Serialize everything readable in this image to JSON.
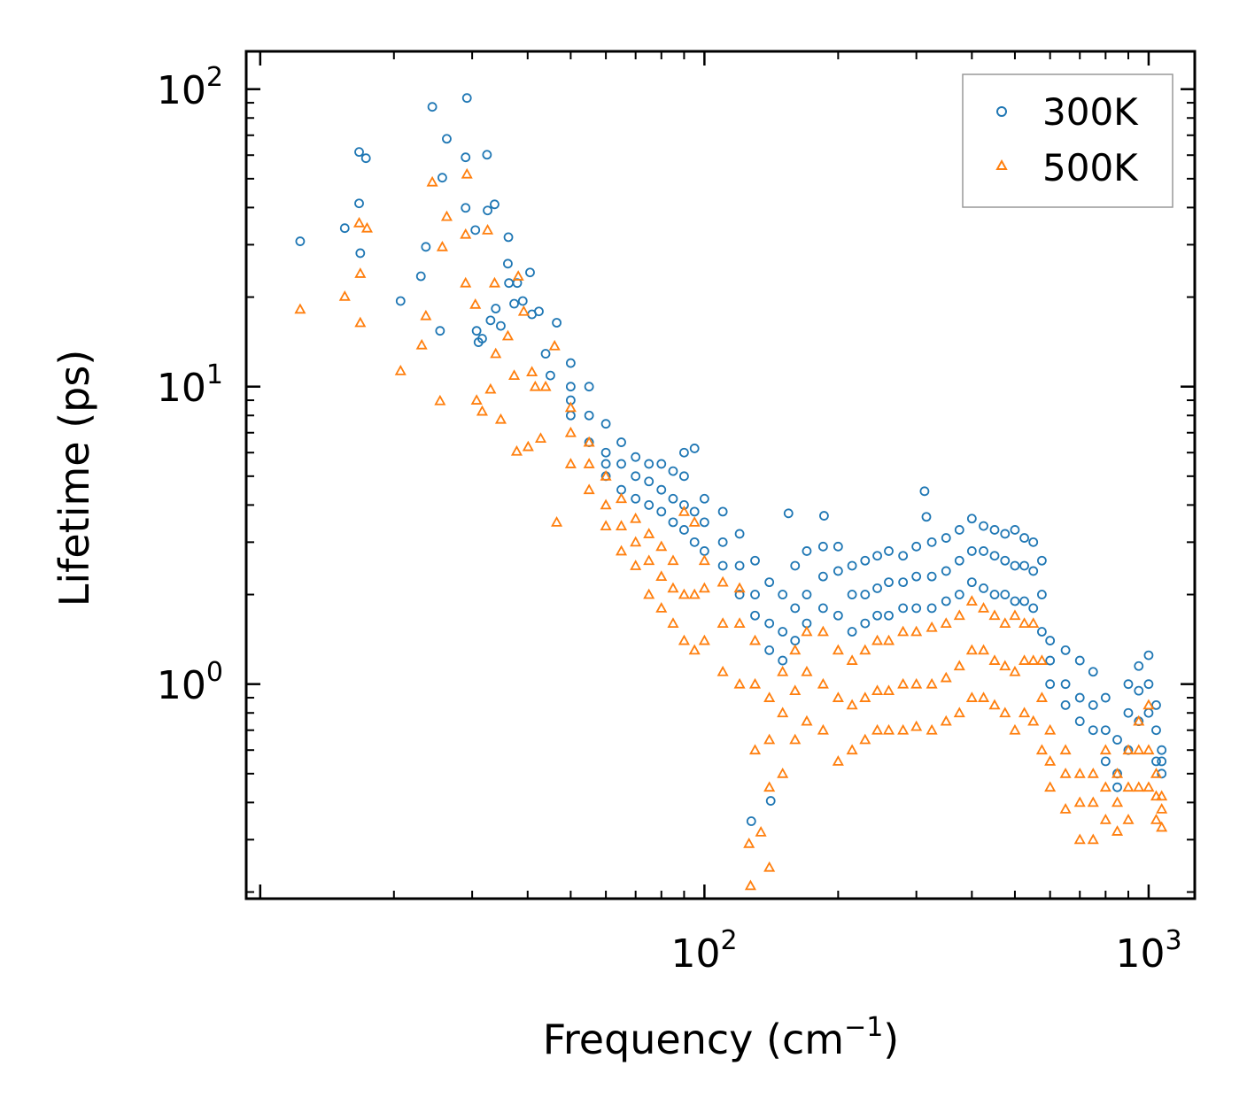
{
  "chart_data": {
    "type": "scatter",
    "title": "",
    "xlabel": "Frequency (cm",
    "xlabel_sup": "−1",
    "xlabel_tail": ")",
    "ylabel": "Lifetime (ps)",
    "xscale": "log",
    "yscale": "log",
    "xlim": [
      9.3,
      1270
    ],
    "ylim": [
      0.19,
      134
    ],
    "grid": false,
    "legend_position": "top-right",
    "x_ticks": [
      {
        "value": 100,
        "base": "10",
        "exp": "2"
      },
      {
        "value": 1000,
        "base": "10",
        "exp": "3"
      }
    ],
    "y_ticks": [
      {
        "value": 1,
        "base": "10",
        "exp": "0"
      },
      {
        "value": 10,
        "base": "10",
        "exp": "1"
      },
      {
        "value": 100,
        "base": "10",
        "exp": "2"
      }
    ],
    "series": [
      {
        "name": "300K",
        "marker": "circle",
        "color": "#1f77b4",
        "points": [
          [
            12.3,
            30.8
          ],
          [
            15.5,
            34.1
          ],
          [
            16.7,
            61.5
          ],
          [
            17.3,
            58.6
          ],
          [
            16.7,
            41.3
          ],
          [
            16.8,
            28.1
          ],
          [
            20.7,
            19.4
          ],
          [
            23.0,
            23.5
          ],
          [
            23.6,
            29.5
          ],
          [
            24.4,
            87.2
          ],
          [
            25.4,
            15.4
          ],
          [
            25.7,
            50.4
          ],
          [
            26.3,
            68.1
          ],
          [
            29.0,
            59.0
          ],
          [
            29.2,
            93.4
          ],
          [
            29.0,
            39.9
          ],
          [
            30.5,
            33.6
          ],
          [
            30.7,
            15.4
          ],
          [
            31.0,
            14.1
          ],
          [
            31.6,
            14.5
          ],
          [
            32.4,
            60.2
          ],
          [
            32.5,
            39.1
          ],
          [
            33.7,
            41.0
          ],
          [
            33.0,
            16.7
          ],
          [
            33.9,
            18.3
          ],
          [
            34.8,
            16.0
          ],
          [
            36.1,
            25.9
          ],
          [
            36.2,
            31.8
          ],
          [
            36.3,
            22.3
          ],
          [
            37.3,
            19.0
          ],
          [
            37.9,
            22.3
          ],
          [
            40.5,
            24.2
          ],
          [
            39.0,
            19.4
          ],
          [
            40.9,
            17.5
          ],
          [
            42.4,
            17.9
          ],
          [
            46.5,
            16.4
          ],
          [
            43.9,
            12.9
          ],
          [
            45.0,
            10.9
          ],
          [
            154.6,
            3.75
          ],
          [
            185.9,
            3.68
          ],
          [
            313,
            4.45
          ],
          [
            316,
            3.65
          ],
          [
            127.5,
            0.346
          ],
          [
            141,
            0.405
          ]
        ],
        "band": [
          [
            50,
            [
              10,
              12,
              8,
              9
            ]
          ],
          [
            55,
            [
              8,
              10,
              6.5
            ]
          ],
          [
            60,
            [
              6,
              7.5,
              5,
              5.5
            ]
          ],
          [
            65,
            [
              5.5,
              6.5,
              4.5
            ]
          ],
          [
            70,
            [
              5,
              5.8,
              4.2
            ]
          ],
          [
            75,
            [
              4.8,
              5.5,
              4
            ]
          ],
          [
            80,
            [
              4.5,
              5.5,
              3.8
            ]
          ],
          [
            85,
            [
              4.2,
              5.2,
              3.5
            ]
          ],
          [
            90,
            [
              4,
              5,
              3.3,
              6
            ]
          ],
          [
            95,
            [
              3.8,
              6.2,
              3
            ]
          ],
          [
            100,
            [
              3.5,
              4.2,
              2.8
            ]
          ],
          [
            110,
            [
              3,
              3.8,
              2.5
            ]
          ],
          [
            120,
            [
              2.5,
              3.2,
              2
            ]
          ],
          [
            130,
            [
              2,
              2.6,
              1.7
            ]
          ],
          [
            140,
            [
              1.6,
              2.2,
              1.3
            ]
          ],
          [
            150,
            [
              1.5,
              2,
              1.2
            ]
          ],
          [
            160,
            [
              1.8,
              2.5,
              1.4
            ]
          ],
          [
            170,
            [
              2,
              2.8,
              1.6
            ]
          ],
          [
            185,
            [
              2.3,
              2.9,
              1.8
            ]
          ],
          [
            200,
            [
              2.4,
              2.9,
              1.7
            ]
          ],
          [
            215,
            [
              2,
              2.5,
              1.5
            ]
          ],
          [
            230,
            [
              2,
              2.6,
              1.6
            ]
          ],
          [
            245,
            [
              2.1,
              2.7,
              1.7
            ]
          ],
          [
            260,
            [
              2.2,
              2.8,
              1.7
            ]
          ],
          [
            280,
            [
              2.2,
              2.7,
              1.8
            ]
          ],
          [
            300,
            [
              2.3,
              2.9,
              1.8
            ]
          ],
          [
            325,
            [
              2.3,
              3,
              1.8
            ]
          ],
          [
            350,
            [
              2.4,
              3.1,
              1.9
            ]
          ],
          [
            375,
            [
              2.6,
              3.3,
              2
            ]
          ],
          [
            400,
            [
              2.8,
              3.6,
              2.2
            ]
          ],
          [
            425,
            [
              2.8,
              3.4,
              2.1
            ]
          ],
          [
            450,
            [
              2.7,
              3.3,
              2
            ]
          ],
          [
            475,
            [
              2.6,
              3.2,
              2
            ]
          ],
          [
            500,
            [
              2.5,
              3.3,
              1.9
            ]
          ],
          [
            525,
            [
              2.5,
              3.1,
              1.9
            ]
          ],
          [
            550,
            [
              2.4,
              3,
              1.8
            ]
          ],
          [
            575,
            [
              2,
              2.6,
              1.5
            ]
          ],
          [
            600,
            [
              1.2,
              1.4,
              1
            ]
          ],
          [
            650,
            [
              1,
              1.3,
              0.85
            ]
          ],
          [
            700,
            [
              0.9,
              1.2,
              0.75
            ]
          ],
          [
            750,
            [
              0.85,
              1.1,
              0.7
            ]
          ],
          [
            800,
            [
              0.7,
              0.9,
              0.55
            ]
          ],
          [
            850,
            [
              0.5,
              0.65,
              0.45
            ]
          ],
          [
            900,
            [
              0.8,
              1,
              0.6
            ]
          ],
          [
            950,
            [
              0.95,
              1.15,
              0.75
            ]
          ],
          [
            1000,
            [
              1,
              1.25,
              0.8
            ]
          ],
          [
            1040,
            [
              0.7,
              0.85,
              0.55
            ]
          ],
          [
            1070,
            [
              0.55,
              0.6,
              0.5
            ]
          ]
        ]
      },
      {
        "name": "500K",
        "marker": "triangle",
        "color": "#ff7f0e",
        "points": [
          [
            12.3,
            18.2
          ],
          [
            15.5,
            20.1
          ],
          [
            16.7,
            35.5
          ],
          [
            17.4,
            34.1
          ],
          [
            16.8,
            24.0
          ],
          [
            16.8,
            16.4
          ],
          [
            20.7,
            11.3
          ],
          [
            23.6,
            17.3
          ],
          [
            23.1,
            13.8
          ],
          [
            25.4,
            8.96
          ],
          [
            24.4,
            48.7
          ],
          [
            25.7,
            29.5
          ],
          [
            26.3,
            37.3
          ],
          [
            29.2,
            51.8
          ],
          [
            29.0,
            32.5
          ],
          [
            29.0,
            22.3
          ],
          [
            30.5,
            18.9
          ],
          [
            30.7,
            9.0
          ],
          [
            31.6,
            8.26
          ],
          [
            32.5,
            33.6
          ],
          [
            33.7,
            22.3
          ],
          [
            33.0,
            9.8
          ],
          [
            33.9,
            12.9
          ],
          [
            34.8,
            7.76
          ],
          [
            36.1,
            14.8
          ],
          [
            37.3,
            10.9
          ],
          [
            38.1,
            23.5
          ],
          [
            37.8,
            6.06
          ],
          [
            39.2,
            17.9
          ],
          [
            40.9,
            11.2
          ],
          [
            40.1,
            6.28
          ],
          [
            41.6,
            10
          ],
          [
            43.9,
            10
          ],
          [
            46.0,
            13.7
          ],
          [
            42.8,
            6.7
          ],
          [
            46.5,
            3.5
          ],
          [
            127,
            0.21
          ],
          [
            140,
            0.242
          ],
          [
            126,
            0.291
          ],
          [
            134,
            0.318
          ]
        ],
        "band": [
          [
            50,
            [
              7,
              8.5,
              5.5
            ]
          ],
          [
            55,
            [
              5.5,
              6.5,
              4.5
            ]
          ],
          [
            60,
            [
              4,
              5,
              3.4
            ]
          ],
          [
            65,
            [
              3.4,
              4.2,
              2.8
            ]
          ],
          [
            70,
            [
              3,
              3.6,
              2.5
            ]
          ],
          [
            75,
            [
              2.6,
              3.2,
              2
            ]
          ],
          [
            80,
            [
              2.3,
              2.9,
              1.8
            ]
          ],
          [
            85,
            [
              2.1,
              2.6,
              1.6
            ]
          ],
          [
            90,
            [
              2,
              3.8,
              1.4
            ]
          ],
          [
            95,
            [
              2,
              3.5,
              1.3
            ]
          ],
          [
            100,
            [
              2.1,
              2.6,
              1.4
            ]
          ],
          [
            110,
            [
              1.6,
              2.2,
              1.1
            ]
          ],
          [
            120,
            [
              1.6,
              2.1,
              1
            ]
          ],
          [
            130,
            [
              1,
              1.4,
              0.6
            ]
          ],
          [
            140,
            [
              0.65,
              0.9,
              0.45
            ]
          ],
          [
            150,
            [
              0.8,
              1.1,
              0.5
            ]
          ],
          [
            160,
            [
              0.95,
              1.3,
              0.65
            ]
          ],
          [
            170,
            [
              1.1,
              1.5,
              0.75
            ]
          ],
          [
            185,
            [
              1,
              1.5,
              0.7
            ]
          ],
          [
            200,
            [
              0.9,
              1.3,
              0.55
            ]
          ],
          [
            215,
            [
              0.85,
              1.2,
              0.6
            ]
          ],
          [
            230,
            [
              0.9,
              1.3,
              0.65
            ]
          ],
          [
            245,
            [
              0.95,
              1.4,
              0.7
            ]
          ],
          [
            260,
            [
              0.95,
              1.4,
              0.7
            ]
          ],
          [
            280,
            [
              1,
              1.5,
              0.7
            ]
          ],
          [
            300,
            [
              1,
              1.5,
              0.72
            ]
          ],
          [
            325,
            [
              1,
              1.55,
              0.7
            ]
          ],
          [
            350,
            [
              1.05,
              1.6,
              0.75
            ]
          ],
          [
            375,
            [
              1.15,
              1.7,
              0.8
            ]
          ],
          [
            400,
            [
              1.3,
              1.9,
              0.9
            ]
          ],
          [
            425,
            [
              1.3,
              1.8,
              0.9
            ]
          ],
          [
            450,
            [
              1.2,
              1.7,
              0.85
            ]
          ],
          [
            475,
            [
              1.15,
              1.6,
              0.8
            ]
          ],
          [
            500,
            [
              1.1,
              1.7,
              0.7
            ]
          ],
          [
            525,
            [
              1.2,
              1.6,
              0.8
            ]
          ],
          [
            550,
            [
              1.2,
              1.6,
              0.75
            ]
          ],
          [
            575,
            [
              0.9,
              1.2,
              0.6
            ]
          ],
          [
            600,
            [
              0.55,
              0.7,
              0.45
            ]
          ],
          [
            650,
            [
              0.5,
              0.6,
              0.38
            ]
          ],
          [
            700,
            [
              0.4,
              0.5,
              0.3
            ]
          ],
          [
            750,
            [
              0.4,
              0.5,
              0.3
            ]
          ],
          [
            800,
            [
              0.45,
              0.6,
              0.35
            ]
          ],
          [
            850,
            [
              0.4,
              0.5,
              0.32
            ]
          ],
          [
            900,
            [
              0.45,
              0.6,
              0.35
            ]
          ],
          [
            950,
            [
              0.6,
              0.75,
              0.45
            ]
          ],
          [
            1000,
            [
              0.6,
              0.85,
              0.45
            ]
          ],
          [
            1040,
            [
              0.42,
              0.5,
              0.35
            ]
          ],
          [
            1070,
            [
              0.38,
              0.42,
              0.33
            ]
          ]
        ]
      }
    ]
  }
}
